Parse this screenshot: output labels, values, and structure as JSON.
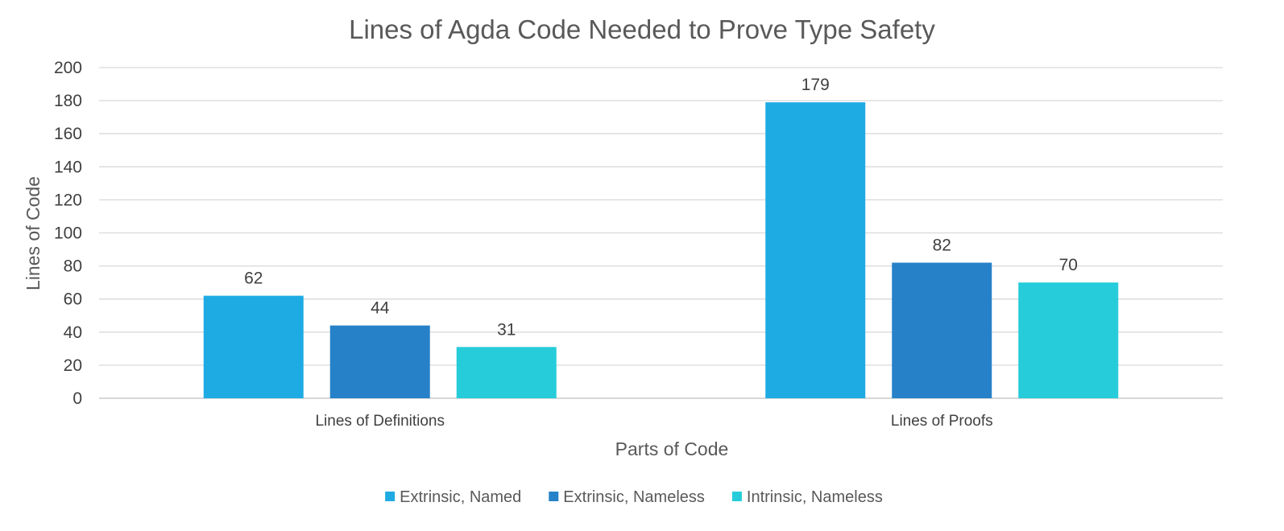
{
  "chart_data": {
    "type": "bar",
    "title": "Lines of Agda Code Needed to Prove Type Safety",
    "xlabel": "Parts of Code",
    "ylabel": "Lines of Code",
    "categories": [
      "Lines of Definitions",
      "Lines of Proofs"
    ],
    "series": [
      {
        "name": "Extrinsic, Named",
        "values": [
          62,
          179
        ],
        "color": "#1eabe3"
      },
      {
        "name": "Extrinsic, Nameless",
        "values": [
          44,
          82
        ],
        "color": "#2681c8"
      },
      {
        "name": "Intrinsic, Nameless",
        "values": [
          31,
          70
        ],
        "color": "#26ccd9"
      }
    ],
    "ylim": [
      0,
      200
    ],
    "yticks": [
      0,
      20,
      40,
      60,
      80,
      100,
      120,
      140,
      160,
      180,
      200
    ],
    "grid": true,
    "legend_position": "bottom",
    "data_labels": true
  }
}
